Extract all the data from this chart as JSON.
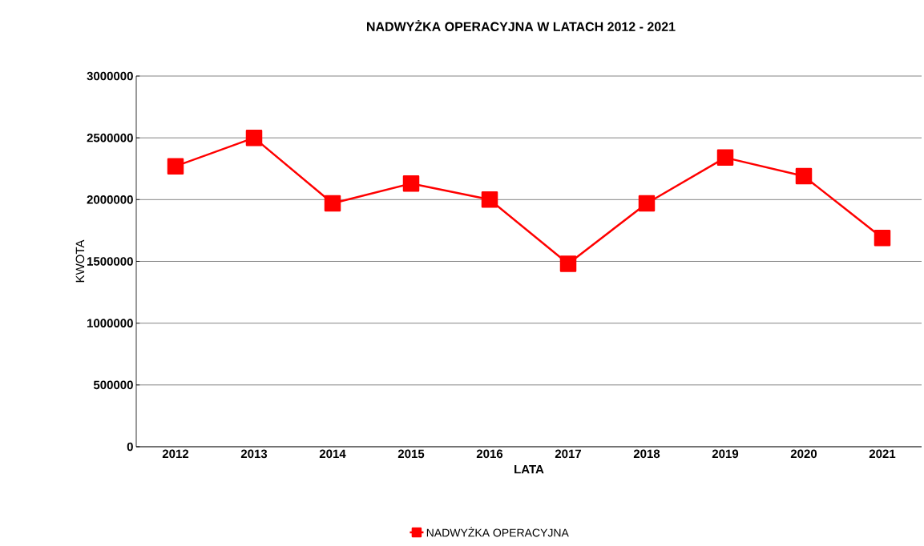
{
  "chart_data": {
    "type": "line",
    "title": "NADWYŻKA OPERACYJNA W LATACH 2012 - 2021",
    "xlabel": "LATA",
    "ylabel": "KWOTA",
    "categories": [
      "2012",
      "2013",
      "2014",
      "2015",
      "2016",
      "2017",
      "2018",
      "2019",
      "2020",
      "2021"
    ],
    "series": [
      {
        "name": "NADWYŻKA OPERACYJNA",
        "color": "#ff0000",
        "values": [
          2270000,
          2500000,
          1970000,
          2130000,
          2000000,
          1480000,
          1970000,
          2340000,
          2190000,
          1690000
        ]
      }
    ],
    "ylim": [
      0,
      3000000
    ],
    "yticks": [
      0,
      500000,
      1000000,
      1500000,
      2000000,
      2500000,
      3000000
    ],
    "grid": "y",
    "legend": "bottom",
    "marker": "square",
    "line_style": "solid"
  }
}
